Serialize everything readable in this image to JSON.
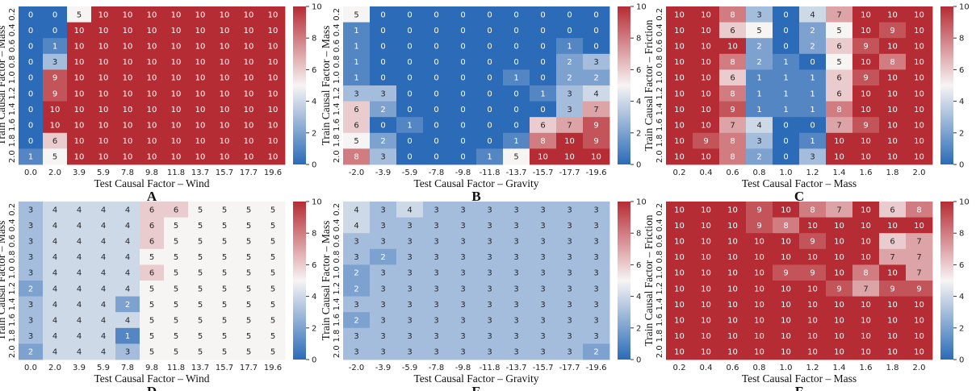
{
  "chart_data": [
    {
      "panel": "A",
      "type": "heatmap",
      "xlabel": "Test Causal Factor – Wind",
      "ylabel": "Train Causal Factor – Mass",
      "x_categories": [
        "0.0",
        "2.0",
        "3.9",
        "5.9",
        "7.8",
        "9.8",
        "11.8",
        "13.7",
        "15.7",
        "17.7",
        "19.6"
      ],
      "y_categories": [
        "0.2",
        "0.4",
        "0.6",
        "0.8",
        "1.0",
        "1.2",
        "1.4",
        "1.6",
        "1.8",
        "2.0"
      ],
      "values": [
        [
          0,
          0,
          5,
          10,
          10,
          10,
          10,
          10,
          10,
          10,
          10
        ],
        [
          0,
          0,
          10,
          10,
          10,
          10,
          10,
          10,
          10,
          10,
          10
        ],
        [
          0,
          1,
          10,
          10,
          10,
          10,
          10,
          10,
          10,
          10,
          10
        ],
        [
          0,
          3,
          10,
          10,
          10,
          10,
          10,
          10,
          10,
          10,
          10
        ],
        [
          0,
          9,
          10,
          10,
          10,
          10,
          10,
          10,
          10,
          10,
          10
        ],
        [
          0,
          9,
          10,
          10,
          10,
          10,
          10,
          10,
          10,
          10,
          10
        ],
        [
          0,
          10,
          10,
          10,
          10,
          10,
          10,
          10,
          10,
          10,
          10
        ],
        [
          0,
          10,
          10,
          10,
          10,
          10,
          10,
          10,
          10,
          10,
          10
        ],
        [
          0,
          6,
          10,
          10,
          10,
          10,
          10,
          10,
          10,
          10,
          10
        ],
        [
          1,
          5,
          10,
          10,
          10,
          10,
          10,
          10,
          10,
          10,
          10
        ]
      ],
      "colorbar": {
        "range": [
          0,
          10
        ],
        "ticks": [
          "0",
          "2",
          "4",
          "6",
          "8",
          "10"
        ]
      },
      "colorscale": {
        "low": "#2b6bb8",
        "mid": "#f7f4f4",
        "high": "#b62c34"
      }
    },
    {
      "panel": "B",
      "type": "heatmap",
      "xlabel": "Test Causal Factor – Gravity",
      "ylabel": "Train Causal Factor – Mass",
      "x_categories": [
        "-2.0",
        "-3.9",
        "-5.9",
        "-7.8",
        "-9.8",
        "-11.8",
        "-13.7",
        "-15.7",
        "-17.7",
        "-19.6"
      ],
      "y_categories": [
        "0.2",
        "0.4",
        "0.6",
        "0.8",
        "1.0",
        "1.2",
        "1.4",
        "1.6",
        "1.8",
        "2.0"
      ],
      "values": [
        [
          5,
          0,
          0,
          0,
          0,
          0,
          0,
          0,
          0,
          0
        ],
        [
          1,
          0,
          0,
          0,
          0,
          0,
          0,
          0,
          0,
          0
        ],
        [
          1,
          0,
          0,
          0,
          0,
          0,
          0,
          0,
          1,
          0
        ],
        [
          1,
          0,
          0,
          0,
          0,
          0,
          0,
          0,
          2,
          3
        ],
        [
          1,
          0,
          0,
          0,
          0,
          0,
          1,
          0,
          2,
          2
        ],
        [
          3,
          3,
          0,
          0,
          0,
          0,
          0,
          1,
          3,
          4
        ],
        [
          6,
          2,
          0,
          0,
          0,
          0,
          0,
          0,
          3,
          7
        ],
        [
          6,
          0,
          1,
          0,
          0,
          0,
          0,
          6,
          7,
          9
        ],
        [
          5,
          2,
          0,
          0,
          0,
          0,
          1,
          8,
          10,
          9
        ],
        [
          8,
          3,
          0,
          0,
          0,
          1,
          5,
          10,
          10,
          10
        ]
      ],
      "colorbar": {
        "range": [
          0,
          10
        ],
        "ticks": [
          "0",
          "2",
          "4",
          "6",
          "8",
          "10"
        ]
      },
      "colorscale": {
        "low": "#2b6bb8",
        "mid": "#f7f4f4",
        "high": "#b62c34"
      }
    },
    {
      "panel": "C",
      "type": "heatmap",
      "xlabel": "Test Causal Factor – Mass",
      "ylabel": "Train Causal Factor – Friction",
      "x_categories": [
        "0.2",
        "0.4",
        "0.6",
        "0.8",
        "1.0",
        "1.2",
        "1.4",
        "1.6",
        "1.8",
        "2.0"
      ],
      "y_categories": [
        "0.2",
        "0.4",
        "0.6",
        "0.8",
        "1.0",
        "1.2",
        "1.4",
        "1.6",
        "1.8",
        "2.0"
      ],
      "values": [
        [
          10,
          10,
          8,
          3,
          0,
          4,
          7,
          10,
          10,
          10
        ],
        [
          10,
          10,
          6,
          5,
          0,
          2,
          5,
          10,
          9,
          10
        ],
        [
          10,
          10,
          10,
          2,
          0,
          2,
          6,
          9,
          10,
          10
        ],
        [
          10,
          10,
          8,
          2,
          1,
          0,
          5,
          10,
          8,
          10
        ],
        [
          10,
          10,
          6,
          1,
          1,
          1,
          6,
          9,
          10,
          10
        ],
        [
          10,
          10,
          8,
          1,
          1,
          1,
          6,
          10,
          10,
          10
        ],
        [
          10,
          10,
          9,
          1,
          1,
          1,
          8,
          10,
          10,
          10
        ],
        [
          10,
          10,
          7,
          4,
          0,
          0,
          7,
          9,
          10,
          10
        ],
        [
          10,
          9,
          8,
          3,
          0,
          1,
          10,
          10,
          10,
          10
        ],
        [
          10,
          10,
          8,
          2,
          0,
          3,
          10,
          10,
          10,
          10
        ]
      ],
      "colorbar": {
        "range": [
          0,
          10
        ],
        "ticks": [
          "0",
          "2",
          "4",
          "6",
          "8",
          "10"
        ]
      },
      "colorscale": {
        "low": "#2b6bb8",
        "mid": "#f7f4f4",
        "high": "#b62c34"
      }
    },
    {
      "panel": "D",
      "type": "heatmap",
      "xlabel": "Test Causal Factor – Wind",
      "ylabel": "Train Causal Factor – Mass",
      "x_categories": [
        "0.0",
        "2.0",
        "3.9",
        "5.9",
        "7.8",
        "9.8",
        "11.8",
        "13.7",
        "15.7",
        "17.7",
        "19.6"
      ],
      "y_categories": [
        "0.2",
        "0.4",
        "0.6",
        "0.8",
        "1.0",
        "1.2",
        "1.4",
        "1.6",
        "1.8",
        "2.0"
      ],
      "values": [
        [
          3,
          4,
          4,
          4,
          4,
          6,
          6,
          5,
          5,
          5,
          5
        ],
        [
          3,
          4,
          4,
          4,
          4,
          6,
          5,
          5,
          5,
          5,
          5
        ],
        [
          3,
          4,
          4,
          4,
          4,
          6,
          5,
          5,
          5,
          5,
          5
        ],
        [
          3,
          4,
          4,
          4,
          4,
          5,
          5,
          5,
          5,
          5,
          5
        ],
        [
          3,
          4,
          4,
          4,
          4,
          6,
          5,
          5,
          5,
          5,
          5
        ],
        [
          2,
          4,
          4,
          4,
          4,
          5,
          5,
          5,
          5,
          5,
          5
        ],
        [
          3,
          4,
          4,
          4,
          2,
          5,
          5,
          5,
          5,
          5,
          5
        ],
        [
          3,
          4,
          4,
          4,
          4,
          5,
          5,
          5,
          5,
          5,
          5
        ],
        [
          3,
          4,
          4,
          4,
          1,
          5,
          5,
          5,
          5,
          5,
          5
        ],
        [
          2,
          4,
          4,
          4,
          3,
          5,
          5,
          5,
          5,
          5,
          5
        ]
      ],
      "colorbar": {
        "range": [
          0,
          10
        ],
        "ticks": [
          "0",
          "2",
          "4",
          "6",
          "8",
          "10"
        ]
      },
      "colorscale": {
        "low": "#2b6bb8",
        "mid": "#f7f4f4",
        "high": "#b62c34"
      }
    },
    {
      "panel": "E",
      "type": "heatmap",
      "xlabel": "Test Causal Factor – Gravity",
      "ylabel": "Train Causal Factor – Mass",
      "x_categories": [
        "-2.0",
        "-3.9",
        "-5.9",
        "-7.8",
        "-9.8",
        "-11.8",
        "-13.7",
        "-15.7",
        "-17.7",
        "-19.6"
      ],
      "y_categories": [
        "0.2",
        "0.4",
        "0.6",
        "0.8",
        "1.0",
        "1.2",
        "1.4",
        "1.6",
        "1.8",
        "2.0"
      ],
      "values": [
        [
          4,
          3,
          4,
          3,
          3,
          3,
          3,
          3,
          3,
          3
        ],
        [
          4,
          3,
          3,
          3,
          3,
          3,
          3,
          3,
          3,
          3
        ],
        [
          3,
          3,
          3,
          3,
          3,
          3,
          3,
          3,
          3,
          3
        ],
        [
          3,
          2,
          3,
          3,
          3,
          3,
          3,
          3,
          3,
          3
        ],
        [
          2,
          3,
          3,
          3,
          3,
          3,
          3,
          3,
          3,
          3
        ],
        [
          2,
          3,
          3,
          3,
          3,
          3,
          3,
          3,
          3,
          3
        ],
        [
          3,
          3,
          3,
          3,
          3,
          3,
          3,
          3,
          3,
          3
        ],
        [
          2,
          3,
          3,
          3,
          3,
          3,
          3,
          3,
          3,
          3
        ],
        [
          3,
          3,
          3,
          3,
          3,
          3,
          3,
          3,
          3,
          3
        ],
        [
          3,
          3,
          3,
          3,
          3,
          3,
          3,
          3,
          3,
          2
        ]
      ],
      "colorbar": {
        "range": [
          0,
          10
        ],
        "ticks": [
          "0",
          "2",
          "4",
          "6",
          "8",
          "10"
        ]
      },
      "colorscale": {
        "low": "#2b6bb8",
        "mid": "#f7f4f4",
        "high": "#b62c34"
      }
    },
    {
      "panel": "F",
      "type": "heatmap",
      "xlabel": "Test Causal Factor – Mass",
      "ylabel": "Train Causal Factor – Friction",
      "x_categories": [
        "0.2",
        "0.4",
        "0.6",
        "0.8",
        "1.0",
        "1.2",
        "1.4",
        "1.6",
        "1.8",
        "2.0"
      ],
      "y_categories": [
        "0.2",
        "0.4",
        "0.6",
        "0.8",
        "1.0",
        "1.2",
        "1.4",
        "1.6",
        "1.8",
        "2.0"
      ],
      "values": [
        [
          10,
          10,
          10,
          9,
          10,
          8,
          7,
          10,
          6,
          8
        ],
        [
          10,
          10,
          10,
          9,
          8,
          10,
          10,
          10,
          10,
          10
        ],
        [
          10,
          10,
          10,
          10,
          10,
          9,
          10,
          10,
          6,
          7
        ],
        [
          10,
          10,
          10,
          10,
          10,
          10,
          10,
          10,
          7,
          7
        ],
        [
          10,
          10,
          10,
          10,
          9,
          9,
          10,
          8,
          10,
          7
        ],
        [
          10,
          10,
          10,
          10,
          10,
          10,
          9,
          7,
          9,
          9
        ],
        [
          10,
          10,
          10,
          10,
          10,
          10,
          10,
          10,
          10,
          10
        ],
        [
          10,
          10,
          10,
          10,
          10,
          10,
          10,
          10,
          10,
          10
        ],
        [
          10,
          10,
          10,
          10,
          10,
          10,
          10,
          10,
          10,
          10
        ],
        [
          10,
          10,
          10,
          10,
          10,
          10,
          10,
          10,
          10,
          10
        ]
      ],
      "colorbar": {
        "range": [
          0,
          10
        ],
        "ticks": [
          "0",
          "2",
          "4",
          "6",
          "8",
          "10"
        ]
      },
      "colorscale": {
        "low": "#2b6bb8",
        "mid": "#f7f4f4",
        "high": "#b62c34"
      }
    }
  ]
}
